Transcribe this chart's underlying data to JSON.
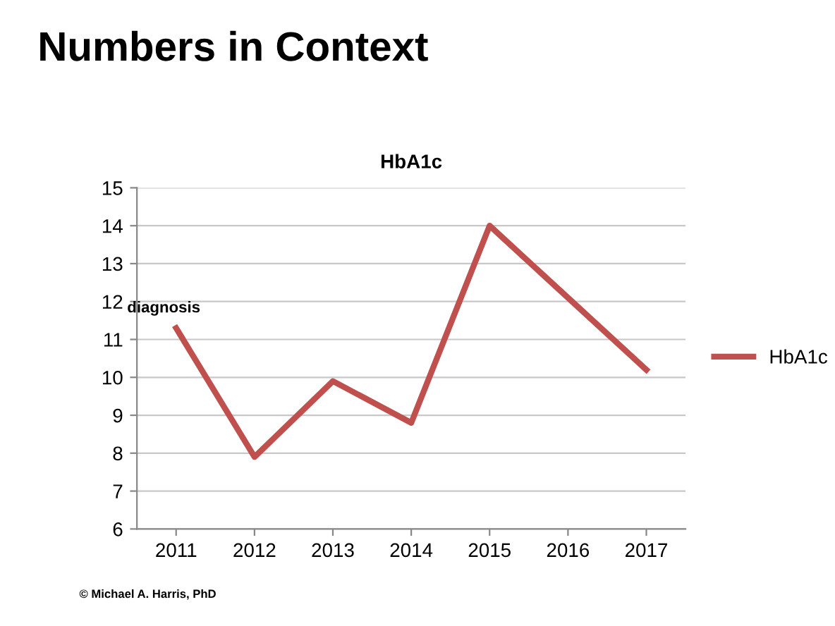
{
  "chart_data": {
    "type": "line",
    "title": "Numbers in Context",
    "subtitle": "HbA1c",
    "categories": [
      "2011",
      "2012",
      "2013",
      "2014",
      "2015",
      "2016",
      "2017"
    ],
    "series": [
      {
        "name": "HbA1c",
        "color": "#c0504d",
        "values": [
          11.3,
          7.9,
          9.9,
          8.8,
          14.0,
          12.1,
          10.2
        ]
      }
    ],
    "ylim": [
      6,
      15
    ],
    "yticks": [
      6,
      7,
      8,
      9,
      10,
      11,
      12,
      13,
      14,
      15
    ],
    "grid": "y",
    "legend": "right",
    "marker": "none",
    "line_style": "solid",
    "annotations": [
      {
        "text": "diagnosis",
        "x": "2011",
        "y": 11.3
      },
      "© Michael A. Harris, PhD"
    ]
  }
}
